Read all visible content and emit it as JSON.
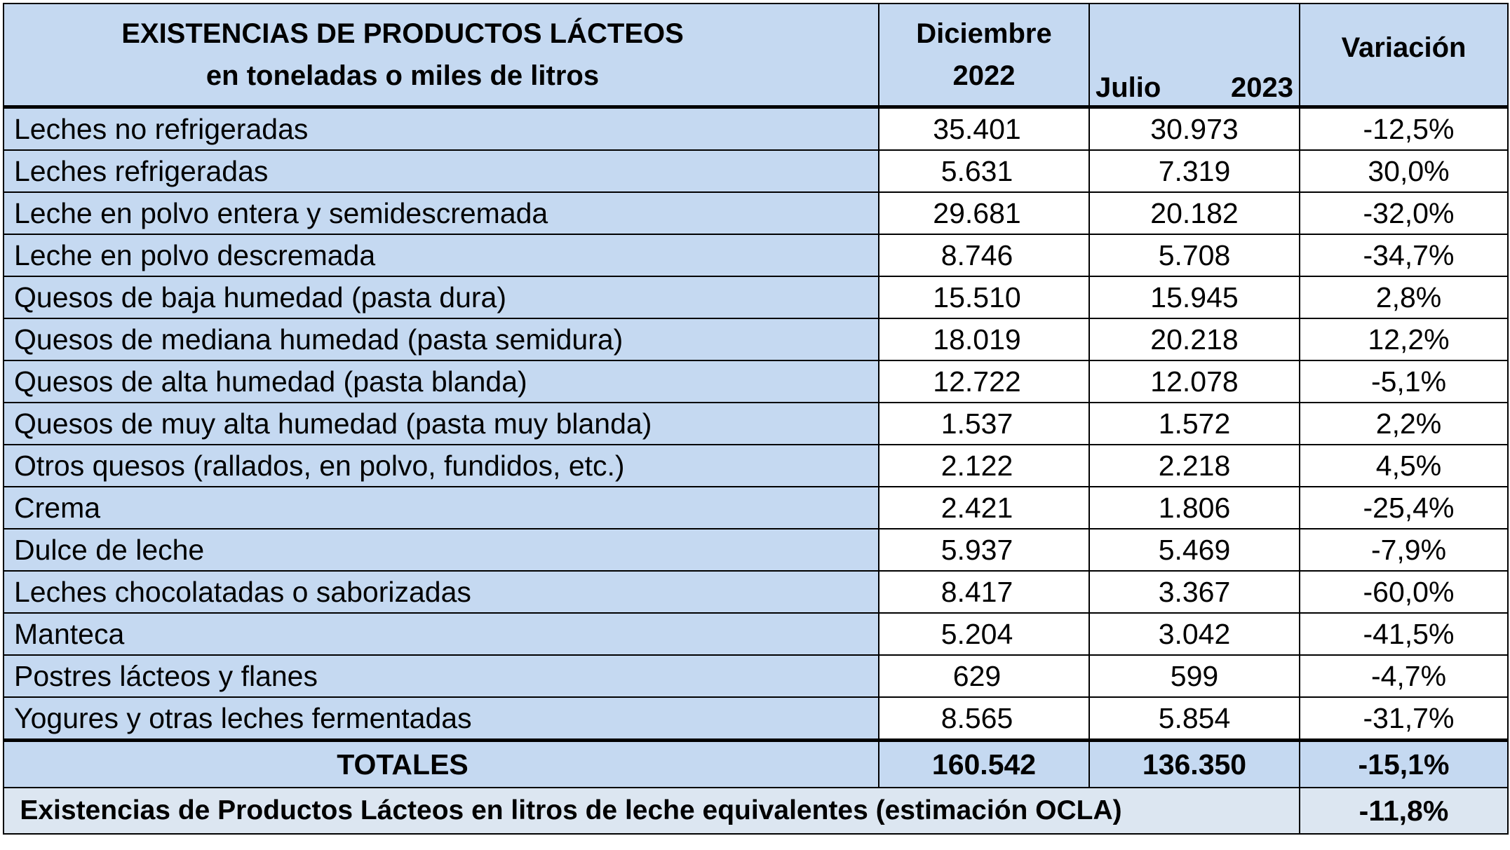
{
  "header": {
    "title_line1": "EXISTENCIAS DE PRODUCTOS LÁCTEOS",
    "title_line2": "en toneladas o miles de litros",
    "dec_month": "Diciembre",
    "dec_year": "2022",
    "jul_month": "Julio",
    "jul_year": "2023",
    "variation": "Variación"
  },
  "rows": [
    {
      "product": "Leches no refrigeradas",
      "dec2022": "35.401",
      "jul2023": "30.973",
      "variation": "-12,5%"
    },
    {
      "product": "Leches refrigeradas",
      "dec2022": "5.631",
      "jul2023": "7.319",
      "variation": "30,0%"
    },
    {
      "product": "Leche en polvo entera y semidescremada",
      "dec2022": "29.681",
      "jul2023": "20.182",
      "variation": "-32,0%"
    },
    {
      "product": "Leche en polvo descremada",
      "dec2022": "8.746",
      "jul2023": "5.708",
      "variation": "-34,7%"
    },
    {
      "product": "Quesos de baja humedad (pasta dura)",
      "dec2022": "15.510",
      "jul2023": "15.945",
      "variation": "2,8%"
    },
    {
      "product": "Quesos de mediana humedad (pasta semidura)",
      "dec2022": "18.019",
      "jul2023": "20.218",
      "variation": "12,2%"
    },
    {
      "product": "Quesos de alta humedad (pasta blanda)",
      "dec2022": "12.722",
      "jul2023": "12.078",
      "variation": "-5,1%"
    },
    {
      "product": "Quesos de muy alta humedad (pasta muy blanda)",
      "dec2022": "1.537",
      "jul2023": "1.572",
      "variation": "2,2%"
    },
    {
      "product": "Otros quesos (rallados, en polvo, fundidos, etc.)",
      "dec2022": "2.122",
      "jul2023": "2.218",
      "variation": "4,5%"
    },
    {
      "product": "Crema",
      "dec2022": "2.421",
      "jul2023": "1.806",
      "variation": "-25,4%"
    },
    {
      "product": "Dulce de leche",
      "dec2022": "5.937",
      "jul2023": "5.469",
      "variation": "-7,9%"
    },
    {
      "product": "Leches chocolatadas o saborizadas",
      "dec2022": "8.417",
      "jul2023": "3.367",
      "variation": "-60,0%"
    },
    {
      "product": "Manteca",
      "dec2022": "5.204",
      "jul2023": "3.042",
      "variation": "-41,5%"
    },
    {
      "product": "Postres lácteos y flanes",
      "dec2022": "629",
      "jul2023": "599",
      "variation": "-4,7%"
    },
    {
      "product": "Yogures y otras leches fermentadas",
      "dec2022": "8.565",
      "jul2023": "5.854",
      "variation": "-31,7%"
    }
  ],
  "totals": {
    "label": "TOTALES",
    "dec2022": "160.542",
    "jul2023": "136.350",
    "variation": "-15,1%"
  },
  "footer": {
    "label": "Existencias de Productos Lácteos en litros de leche equivalentes (estimación OCLA)",
    "value": "-11,8%"
  }
}
